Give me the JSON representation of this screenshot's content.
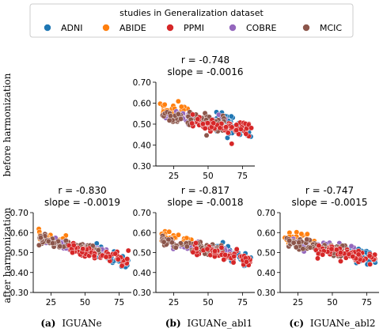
{
  "legend": {
    "title": "studies in Generalization dataset",
    "entries": [
      {
        "name": "ADNI",
        "color": "#1f77b4"
      },
      {
        "name": "ABIDE",
        "color": "#ff7f0e"
      },
      {
        "name": "PPMI",
        "color": "#d62728"
      },
      {
        "name": "COBRE",
        "color": "#9467bd"
      },
      {
        "name": "MCIC",
        "color": "#8c564b"
      }
    ]
  },
  "row_labels": {
    "top": "before harmonization",
    "bottom": "after harmonization"
  },
  "captions": [
    {
      "tag": "(a)",
      "text": "IGUANe"
    },
    {
      "tag": "(b)",
      "text": "IGUANe_abl1"
    },
    {
      "tag": "(c)",
      "text": "IGUANe_abl2"
    }
  ],
  "chart_data": [
    {
      "id": "before-harmonization",
      "type": "scatter",
      "stat_r": "r = -0.748",
      "stat_slope": "slope = -0.0016",
      "xlim": [
        12,
        84
      ],
      "ylim": [
        0.3,
        0.7
      ],
      "xticks": [
        25,
        50,
        75
      ],
      "yticks": [
        "0.30",
        "0.40",
        "0.50",
        "0.60",
        "0.70"
      ],
      "series": [
        {
          "name": "ADNI",
          "x_range": [
            56,
            82
          ],
          "y_at": [
            0.535,
            0.455
          ],
          "spread": 0.045
        },
        {
          "name": "ABIDE",
          "x_range": [
            15,
            38
          ],
          "y_at": [
            0.58,
            0.545
          ],
          "spread": 0.03
        },
        {
          "name": "PPMI",
          "x_range": [
            38,
            82
          ],
          "y_at": [
            0.52,
            0.47
          ],
          "spread": 0.035
        },
        {
          "name": "COBRE",
          "x_range": [
            18,
            66
          ],
          "y_at": [
            0.545,
            0.505
          ],
          "spread": 0.025
        },
        {
          "name": "MCIC",
          "x_range": [
            16,
            62
          ],
          "y_at": [
            0.545,
            0.5
          ],
          "spread": 0.03
        }
      ]
    },
    {
      "id": "after-iguane",
      "type": "scatter",
      "stat_r": "r = -0.830",
      "stat_slope": "slope = -0.0019",
      "xlim": [
        12,
        84
      ],
      "ylim": [
        0.3,
        0.7
      ],
      "xticks": [
        25,
        50,
        75
      ],
      "yticks": [
        "0.30",
        "0.40",
        "0.50",
        "0.60",
        "0.70"
      ],
      "series": [
        {
          "name": "ADNI",
          "x_range": [
            56,
            82
          ],
          "y_at": [
            0.515,
            0.45
          ],
          "spread": 0.035
        },
        {
          "name": "ABIDE",
          "x_range": [
            15,
            38
          ],
          "y_at": [
            0.59,
            0.545
          ],
          "spread": 0.025
        },
        {
          "name": "PPMI",
          "x_range": [
            38,
            82
          ],
          "y_at": [
            0.52,
            0.46
          ],
          "spread": 0.03
        },
        {
          "name": "COBRE",
          "x_range": [
            18,
            66
          ],
          "y_at": [
            0.56,
            0.5
          ],
          "spread": 0.022
        },
        {
          "name": "MCIC",
          "x_range": [
            16,
            62
          ],
          "y_at": [
            0.565,
            0.5
          ],
          "spread": 0.025
        }
      ]
    },
    {
      "id": "after-iguane-abl1",
      "type": "scatter",
      "stat_r": "r = -0.817",
      "stat_slope": "slope = -0.0018",
      "xlim": [
        12,
        84
      ],
      "ylim": [
        0.3,
        0.7
      ],
      "xticks": [
        25,
        50,
        75
      ],
      "yticks": [
        "0.30",
        "0.40",
        "0.50",
        "0.60",
        "0.70"
      ],
      "series": [
        {
          "name": "ADNI",
          "x_range": [
            56,
            82
          ],
          "y_at": [
            0.515,
            0.45
          ],
          "spread": 0.035
        },
        {
          "name": "ABIDE",
          "x_range": [
            15,
            38
          ],
          "y_at": [
            0.59,
            0.545
          ],
          "spread": 0.025
        },
        {
          "name": "PPMI",
          "x_range": [
            38,
            82
          ],
          "y_at": [
            0.52,
            0.46
          ],
          "spread": 0.03
        },
        {
          "name": "COBRE",
          "x_range": [
            18,
            66
          ],
          "y_at": [
            0.555,
            0.5
          ],
          "spread": 0.022
        },
        {
          "name": "MCIC",
          "x_range": [
            16,
            62
          ],
          "y_at": [
            0.56,
            0.5
          ],
          "spread": 0.025
        }
      ]
    },
    {
      "id": "after-iguane-abl2",
      "type": "scatter",
      "stat_r": "r = -0.747",
      "stat_slope": "slope = -0.0015",
      "xlim": [
        12,
        84
      ],
      "ylim": [
        0.3,
        0.7
      ],
      "xticks": [
        25,
        50,
        75
      ],
      "yticks": [
        "0.30",
        "0.40",
        "0.50",
        "0.60",
        "0.70"
      ],
      "series": [
        {
          "name": "ADNI",
          "x_range": [
            56,
            82
          ],
          "y_at": [
            0.525,
            0.47
          ],
          "spread": 0.035
        },
        {
          "name": "ABIDE",
          "x_range": [
            15,
            38
          ],
          "y_at": [
            0.585,
            0.55
          ],
          "spread": 0.03
        },
        {
          "name": "PPMI",
          "x_range": [
            38,
            82
          ],
          "y_at": [
            0.515,
            0.47
          ],
          "spread": 0.03
        },
        {
          "name": "COBRE",
          "x_range": [
            18,
            66
          ],
          "y_at": [
            0.55,
            0.505
          ],
          "spread": 0.022
        },
        {
          "name": "MCIC",
          "x_range": [
            16,
            62
          ],
          "y_at": [
            0.555,
            0.505
          ],
          "spread": 0.025
        }
      ]
    }
  ]
}
